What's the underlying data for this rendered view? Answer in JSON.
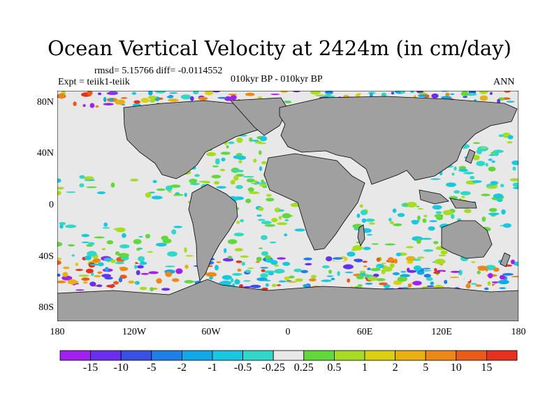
{
  "title": "Ocean Vertical Velocity at 2424m (in cm/day)",
  "stats": "rmsd= 5.15766 diff= -0.0114552",
  "experiment": "Expt = teiik1-teiik",
  "period": "010kyr BP - 010kyr BP",
  "season": "ANN",
  "lat_labels": [
    "80N",
    "40N",
    "0",
    "40S",
    "80S"
  ],
  "lon_labels": [
    "180",
    "120W",
    "60W",
    "0",
    "60E",
    "120E",
    "180"
  ],
  "colorbar": {
    "labels": [
      "-15",
      "-10",
      "-5",
      "-2",
      "-1",
      "-0.5",
      "-0.25",
      "0.25",
      "0.5",
      "1",
      "2",
      "5",
      "10",
      "15"
    ],
    "colors": [
      "#a020f0",
      "#6a2ef0",
      "#3a4fe6",
      "#1e7fe6",
      "#10a8e6",
      "#18c8e0",
      "#30d8c8",
      "#e8e8e8",
      "#62d83c",
      "#a8dc20",
      "#d8d010",
      "#e8b010",
      "#ec8818",
      "#ec5a18",
      "#e83020"
    ]
  },
  "colors": {
    "land": "#a0a0a0",
    "ocean_neutral": "#e8e8e8",
    "coast": "#000000"
  }
}
